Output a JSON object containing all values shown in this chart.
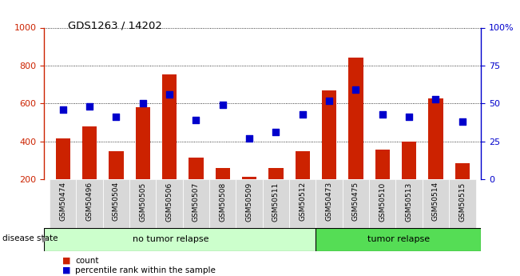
{
  "title": "GDS1263 / 14202",
  "samples": [
    "GSM50474",
    "GSM50496",
    "GSM50504",
    "GSM50505",
    "GSM50506",
    "GSM50507",
    "GSM50508",
    "GSM50509",
    "GSM50511",
    "GSM50512",
    "GSM50473",
    "GSM50475",
    "GSM50510",
    "GSM50513",
    "GSM50514",
    "GSM50515"
  ],
  "counts": [
    415,
    480,
    350,
    580,
    755,
    315,
    260,
    215,
    260,
    350,
    670,
    840,
    355,
    400,
    625,
    285
  ],
  "percentiles": [
    46,
    48,
    41,
    50,
    56,
    39,
    49,
    27,
    31,
    43,
    52,
    59,
    43,
    41,
    53,
    38
  ],
  "no_tumor_count": 10,
  "tumor_count": 6,
  "ylim_left": [
    200,
    1000
  ],
  "ylim_right": [
    0,
    100
  ],
  "yticks_left": [
    200,
    400,
    600,
    800,
    1000
  ],
  "yticks_right": [
    0,
    25,
    50,
    75,
    100
  ],
  "bar_color": "#cc2200",
  "dot_color": "#0000cc",
  "no_tumor_color": "#ccffcc",
  "tumor_color": "#55dd55",
  "xtick_bg_color": "#d8d8d8",
  "group_label": "disease state",
  "no_tumor_label": "no tumor relapse",
  "tumor_label": "tumor relapse",
  "legend_count_label": "count",
  "legend_pct_label": "percentile rank within the sample",
  "bar_width": 0.55,
  "dot_size": 28
}
